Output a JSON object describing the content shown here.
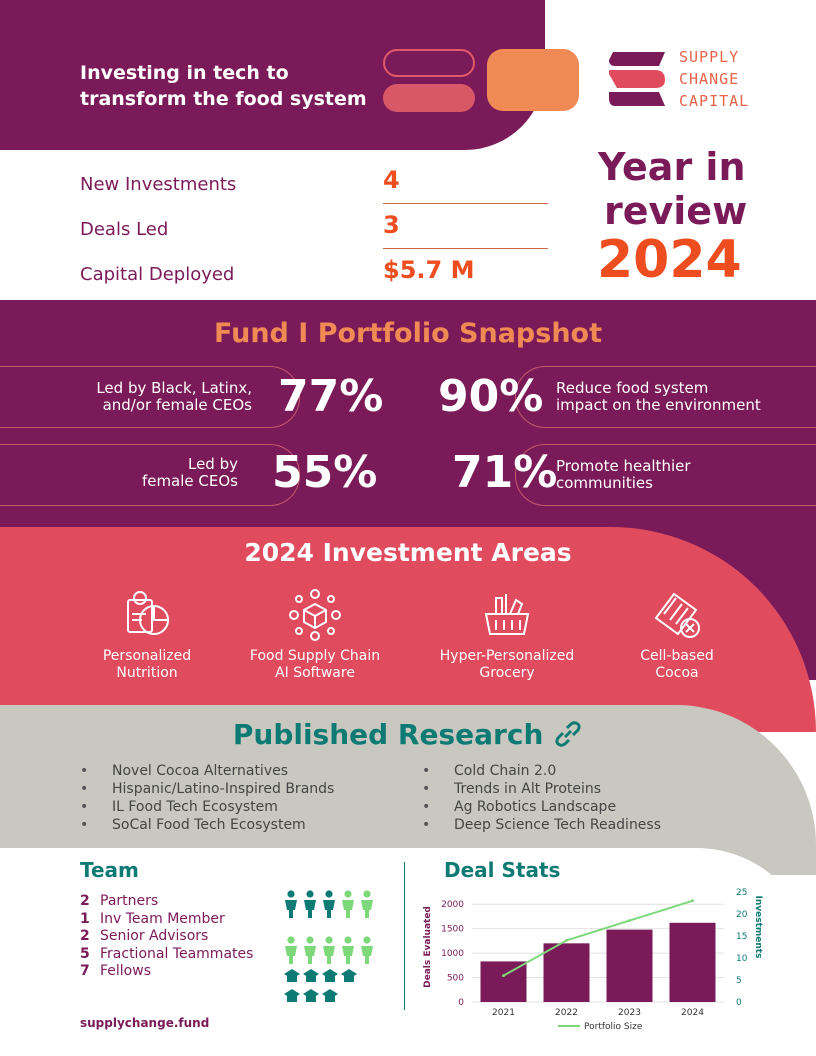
{
  "header": {
    "tagline_line1": "Investing in tech to",
    "tagline_line2": "transform the food system",
    "logo_line1": "SUPPLY",
    "logo_line2": "CHANGE",
    "logo_line3": "CAPITAL",
    "colors": {
      "plum": "#7b1a58",
      "orange": "#ee4d1f",
      "coral": "#e04c5e",
      "teal": "#0d7a74"
    }
  },
  "stats": [
    {
      "label": "New Investments",
      "value": "4"
    },
    {
      "label": "Deals Led",
      "value": "3"
    },
    {
      "label": "Capital Deployed",
      "value": "$5.7 M"
    }
  ],
  "year_review": {
    "line1": "Year in",
    "line2": "review",
    "year": "2024"
  },
  "snapshot": {
    "title": "Fund I Portfolio Snapshot",
    "items": [
      {
        "text1": "Led by Black, Latinx,",
        "text2": "and/or female CEOs",
        "pct": "77%"
      },
      {
        "text1": "Reduce food system",
        "text2": "impact on the environment",
        "pct": "90%"
      },
      {
        "text1": "Led by",
        "text2": "female CEOs",
        "pct": "55%"
      },
      {
        "text1": "Promote healthier",
        "text2": "communities",
        "pct": "71%"
      }
    ]
  },
  "areas": {
    "title": "2024 Investment Areas",
    "items": [
      {
        "line1": "Personalized",
        "line2": "Nutrition",
        "icon": "nutrition-icon"
      },
      {
        "line1": "Food Supply Chain",
        "line2": "AI Software",
        "icon": "supply-chain-icon"
      },
      {
        "line1": "Hyper-Personalized",
        "line2": "Grocery",
        "icon": "grocery-basket-icon"
      },
      {
        "line1": "Cell-based",
        "line2": "Cocoa",
        "icon": "cocoa-icon"
      }
    ]
  },
  "research": {
    "title": "Published Research",
    "link_icon": "link-icon",
    "left": [
      "Novel Cocoa Alternatives",
      "Hispanic/Latino-Inspired Brands",
      "IL Food Tech Ecosystem",
      "SoCal Food Tech Ecosystem"
    ],
    "right": [
      "Cold Chain 2.0",
      "Trends in Alt Proteins",
      "Ag Robotics Landscape",
      "Deep Science Tech Readiness"
    ]
  },
  "team": {
    "title": "Team",
    "rows": [
      {
        "num": "2",
        "label": "Partners"
      },
      {
        "num": "1",
        "label": "Inv Team Member"
      },
      {
        "num": "2",
        "label": "Senior Advisors"
      },
      {
        "num": "5",
        "label": "Fractional Teammates"
      },
      {
        "num": "7",
        "label": "Fellows"
      }
    ]
  },
  "deal_stats_title": "Deal Stats",
  "website": "supplychange.fund",
  "chart_data": {
    "type": "bar",
    "categories": [
      "2021",
      "2022",
      "2023",
      "2024"
    ],
    "series": [
      {
        "values": [
          830,
          1200,
          1480,
          1620
        ],
        "color": "#7b1a58"
      },
      {
        "name": "Portfolio Size",
        "type": "line",
        "axis": "right",
        "values": [
          6,
          14,
          18.5,
          23
        ],
        "color": "#7dd87a"
      }
    ],
    "ylabel": "Deals Evaluated",
    "y2label": "Investments",
    "ylim": [
      0,
      2250
    ],
    "y2lim": [
      0,
      25
    ],
    "yticks": [
      0,
      500,
      1000,
      1500,
      2000
    ],
    "y2ticks": [
      0,
      5,
      10,
      15,
      20,
      25
    ],
    "legend": "bottom",
    "grid": true
  }
}
